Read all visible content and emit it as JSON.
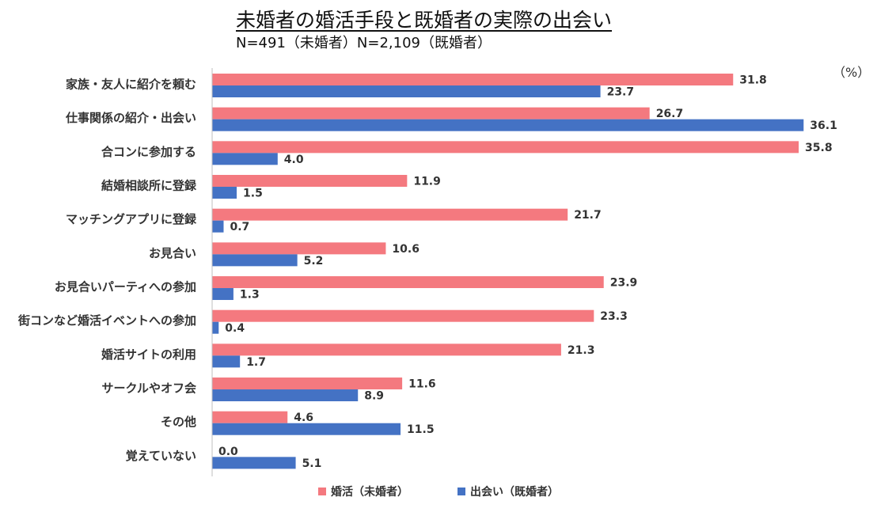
{
  "title": "未婚者の婚活手段と既婚者の実際の出会い",
  "subtitle": "N=491（未婚者）N=2,109（既婚者）",
  "unit_label": "（%）",
  "colors": {
    "konkatsu": "#F4797F",
    "deai": "#4472C4"
  },
  "chart_data": {
    "type": "bar",
    "orientation": "horizontal",
    "title": "未婚者の婚活手段と既婚者の実際の出会い",
    "subtitle": "N=491（未婚者）N=2,109（既婚者）",
    "xlim": [
      0,
      37
    ],
    "grid": false,
    "legend_position": "bottom",
    "categories": [
      "家族・友人に紹介を頼む",
      "仕事関係の紹介・出会い",
      "合コンに参加する",
      "結婚相談所に登録",
      "マッチングアプリに登録",
      "お見合い",
      "お見合いパーティへの参加",
      "街コンなど婚活イベントへの参加",
      "婚活サイトの利用",
      "サークルやオフ会",
      "その他",
      "覚えていない"
    ],
    "series": [
      {
        "name": "婚活（未婚者）",
        "color": "#F4797F",
        "values": [
          31.8,
          26.7,
          35.8,
          11.9,
          21.7,
          10.6,
          23.9,
          23.3,
          21.3,
          11.6,
          4.6,
          0.0
        ],
        "labels": [
          "31.8",
          "26.7",
          "35.8",
          "11.9",
          "21.7",
          "10.6",
          "23.9",
          "23.3",
          "21.3",
          "11.6",
          "4.6",
          "0.0"
        ]
      },
      {
        "name": "出会い（既婚者）",
        "color": "#4472C4",
        "values": [
          23.7,
          36.1,
          4.0,
          1.5,
          0.7,
          5.2,
          1.3,
          0.4,
          1.7,
          8.9,
          11.5,
          5.1
        ],
        "labels": [
          "23.7",
          "36.1",
          "4.0",
          "1.5",
          "0.7",
          "5.2",
          "1.3",
          "0.4",
          "1.7",
          "8.9",
          "11.5",
          "5.1"
        ]
      }
    ]
  }
}
